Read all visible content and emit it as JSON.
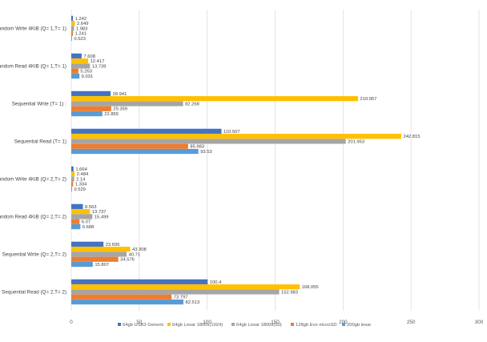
{
  "chart_data": {
    "type": "bar",
    "orientation": "horizontal",
    "categories": [
      "Random Write 4KiB (Q= 1,T= 1)",
      "Random Read 4KiB (Q= 1,T= 1)",
      "Sequential Write (T= 1) :",
      "Sequential Read (T= 1)",
      "Random Write 4KiB (Q= 2,T= 2)",
      "Random Read 4KiB (Q= 2,T= 2)",
      "Sequential Write (Q= 2,T= 2)",
      "Sequential Read (Q= 2,T= 2)"
    ],
    "series": [
      {
        "name": "64gb USB3 Generic",
        "color": "#4472c4",
        "values": [
          1.242,
          7.608,
          28.941,
          110.507,
          1.664,
          8.563,
          23.695,
          100.4
        ]
      },
      {
        "name": "64gb Lexar 1800x(1024)",
        "color": "#ffc000",
        "values": [
          2.649,
          12.417,
          210.957,
          242.815,
          2.484,
          13.737,
          43.308,
          168.055
        ]
      },
      {
        "name": "64gb Lexar 1800x(50)",
        "color": "#a5a5a5",
        "values": [
          1.983,
          13.739,
          82.268,
          201.953,
          2.14,
          15.499,
          40.71,
          152.983
        ]
      },
      {
        "name": "128gb Evo microSD",
        "color": "#ed7d31",
        "values": [
          1.241,
          5.263,
          29.359,
          85.983,
          1.334,
          6.07,
          34.576,
          73.797
        ]
      },
      {
        "name": "200gb lexar",
        "color": "#5b9bd5",
        "values": [
          0.523,
          6.031,
          22.855,
          93.53,
          0.529,
          6.688,
          15.807,
          82.513
        ]
      }
    ],
    "value_labels": [
      [
        "1.242",
        "7.608",
        "28.941",
        "110.507",
        "1.664",
        "8.563",
        "23.695",
        "100.4"
      ],
      [
        "2.649",
        "12.417",
        "210.957",
        "242.815",
        "2.484",
        "13.737",
        "43.308",
        "168.055"
      ],
      [
        "1.983",
        "13.739",
        "82.268",
        "201.953",
        "2.14",
        "15.499",
        "40.71",
        "152.983"
      ],
      [
        "1.241",
        "5.263",
        "29.359",
        "85.983",
        "1.334",
        "6.07",
        "34.576",
        "73.797"
      ],
      [
        "0.523",
        "6.031",
        "22.855",
        "93.53",
        "0.529",
        "6.688",
        "15.807",
        "82.513"
      ]
    ],
    "x_ticks": [
      "0",
      "50",
      "100",
      "150",
      "200",
      "250",
      "300"
    ],
    "xlim": [
      0,
      300
    ],
    "title": "",
    "xlabel": "",
    "ylabel": "",
    "grid": true,
    "legend_position": "bottom"
  }
}
